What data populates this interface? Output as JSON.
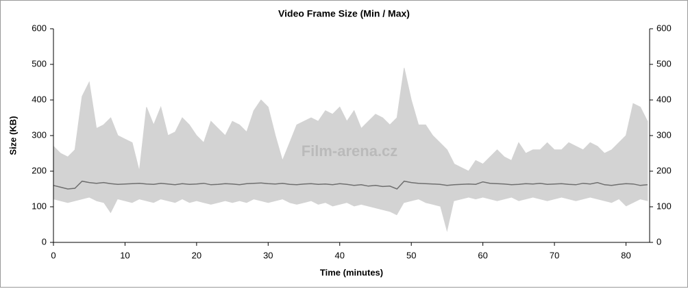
{
  "chart_data": {
    "type": "line",
    "title": "Video Frame Size (Min / Max)",
    "xlabel": "Time (minutes)",
    "ylabel": "Size (KB)",
    "watermark": "Film-arena.cz",
    "x": [
      0,
      1,
      2,
      3,
      4,
      5,
      6,
      7,
      8,
      9,
      10,
      11,
      12,
      13,
      14,
      15,
      16,
      17,
      18,
      19,
      20,
      21,
      22,
      23,
      24,
      25,
      26,
      27,
      28,
      29,
      30,
      31,
      32,
      33,
      34,
      35,
      36,
      37,
      38,
      39,
      40,
      41,
      42,
      43,
      44,
      45,
      46,
      47,
      48,
      49,
      50,
      51,
      52,
      53,
      54,
      55,
      56,
      57,
      58,
      59,
      60,
      61,
      62,
      63,
      64,
      65,
      66,
      67,
      68,
      69,
      70,
      71,
      72,
      73,
      74,
      75,
      76,
      77,
      78,
      79,
      80,
      81,
      82,
      83
    ],
    "series": [
      {
        "color": "#d3d3d3",
        "fill": true,
        "values": [
          270,
          250,
          240,
          260,
          410,
          450,
          320,
          330,
          350,
          300,
          290,
          280,
          200,
          380,
          330,
          380,
          300,
          310,
          350,
          330,
          300,
          280,
          340,
          320,
          300,
          340,
          330,
          310,
          370,
          400,
          380,
          300,
          230,
          280,
          330,
          340,
          350,
          340,
          370,
          360,
          380,
          340,
          370,
          320,
          340,
          360,
          350,
          330,
          350,
          490,
          400,
          330,
          330,
          300,
          280,
          260,
          220,
          210,
          200,
          230,
          220,
          240,
          260,
          240,
          230,
          280,
          250,
          260,
          260,
          280,
          260,
          260,
          280,
          270,
          260,
          280,
          270,
          250,
          260,
          280,
          300,
          390,
          380,
          340
        ]
      },
      {
        "color": "#ffffff",
        "fill": true,
        "values": [
          120,
          115,
          110,
          115,
          120,
          125,
          115,
          110,
          80,
          120,
          115,
          110,
          120,
          115,
          110,
          120,
          115,
          110,
          120,
          110,
          115,
          110,
          105,
          110,
          115,
          110,
          115,
          110,
          120,
          115,
          110,
          115,
          120,
          110,
          105,
          110,
          115,
          105,
          110,
          100,
          105,
          110,
          100,
          105,
          100,
          95,
          90,
          85,
          75,
          110,
          115,
          120,
          110,
          105,
          100,
          25,
          115,
          120,
          125,
          120,
          125,
          120,
          115,
          120,
          125,
          115,
          120,
          125,
          120,
          115,
          120,
          125,
          120,
          115,
          120,
          125,
          120,
          115,
          110,
          120,
          100,
          110,
          120,
          115
        ]
      },
      {
        "color": "#6e6e6e",
        "fill": false,
        "values": [
          160,
          155,
          150,
          152,
          172,
          168,
          166,
          168,
          165,
          163,
          164,
          165,
          166,
          164,
          163,
          166,
          164,
          162,
          165,
          163,
          164,
          166,
          162,
          163,
          165,
          164,
          162,
          165,
          166,
          167,
          165,
          164,
          166,
          163,
          162,
          164,
          165,
          163,
          164,
          162,
          165,
          163,
          160,
          162,
          158,
          160,
          157,
          158,
          150,
          172,
          168,
          166,
          165,
          164,
          163,
          160,
          162,
          163,
          164,
          163,
          170,
          166,
          165,
          164,
          162,
          163,
          165,
          164,
          166,
          163,
          164,
          165,
          163,
          162,
          166,
          164,
          168,
          162,
          160,
          163,
          165,
          164,
          160,
          162
        ]
      }
    ],
    "xlim": [
      0,
      83.3
    ],
    "ylim": [
      0,
      600
    ],
    "xticks": [
      0,
      10,
      20,
      30,
      40,
      50,
      60,
      70,
      80
    ],
    "yticks": [
      0,
      100,
      200,
      300,
      400,
      500,
      600
    ]
  }
}
